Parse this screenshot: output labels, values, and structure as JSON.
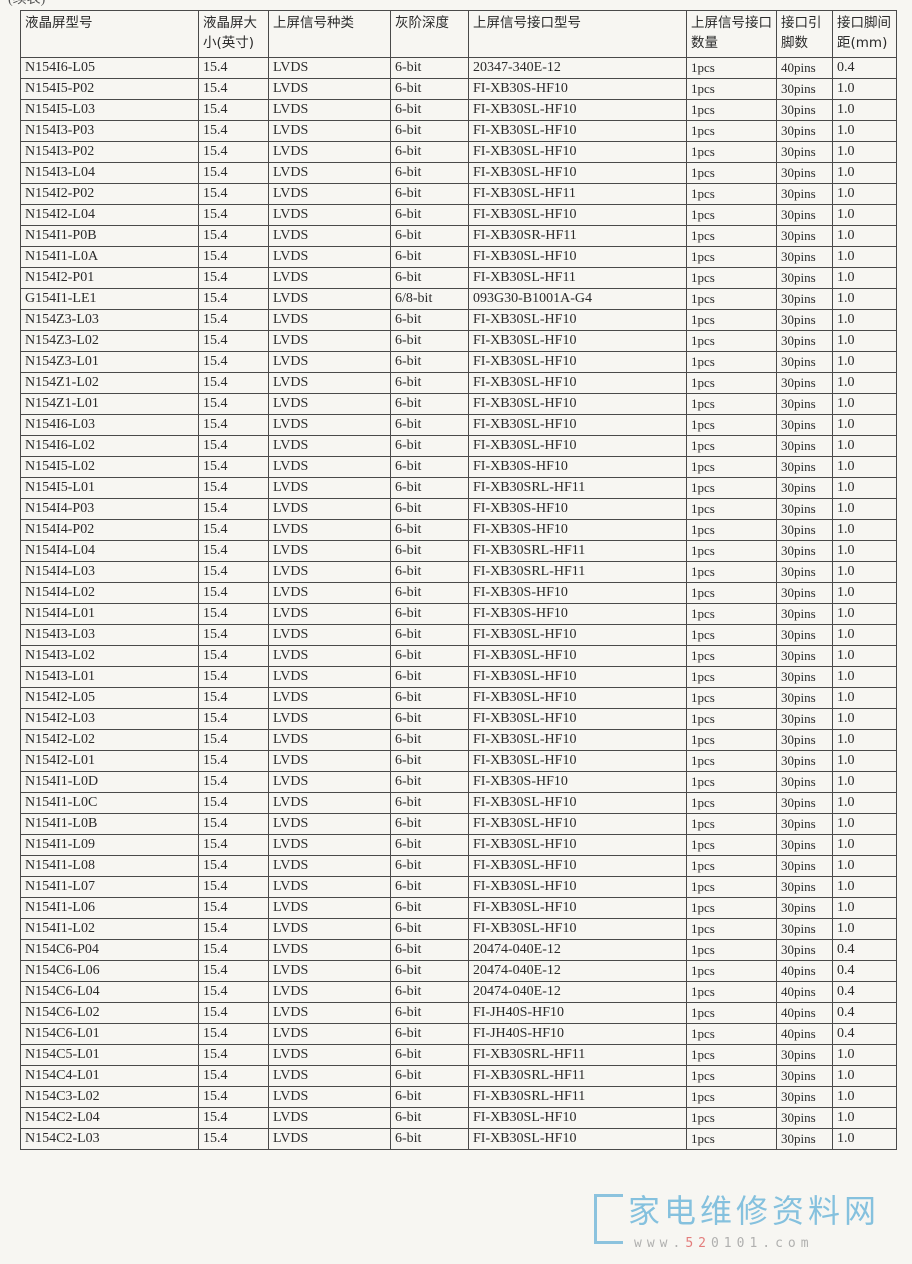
{
  "continued_label": "(续表)",
  "headers": [
    "液晶屏型号",
    "液晶屏大小(英寸)",
    "上屏信号种类",
    "灰阶深度",
    "上屏信号接口型号",
    "上屏信号接口数量",
    "接口引脚数",
    "接口脚间距(mm)"
  ],
  "rows": [
    [
      "N154I6-L05",
      "15.4",
      "LVDS",
      "6-bit",
      "20347-340E-12",
      "1pcs",
      "40pins",
      "0.4"
    ],
    [
      "N154I5-P02",
      "15.4",
      "LVDS",
      "6-bit",
      "FI-XB30S-HF10",
      "1pcs",
      "30pins",
      "1.0"
    ],
    [
      "N154I5-L03",
      "15.4",
      "LVDS",
      "6-bit",
      "FI-XB30SL-HF10",
      "1pcs",
      "30pins",
      "1.0"
    ],
    [
      "N154I3-P03",
      "15.4",
      "LVDS",
      "6-bit",
      "FI-XB30SL-HF10",
      "1pcs",
      "30pins",
      "1.0"
    ],
    [
      "N154I3-P02",
      "15.4",
      "LVDS",
      "6-bit",
      "FI-XB30SL-HF10",
      "1pcs",
      "30pins",
      "1.0"
    ],
    [
      "N154I3-L04",
      "15.4",
      "LVDS",
      "6-bit",
      "FI-XB30SL-HF10",
      "1pcs",
      "30pins",
      "1.0"
    ],
    [
      "N154I2-P02",
      "15.4",
      "LVDS",
      "6-bit",
      "FI-XB30SL-HF11",
      "1pcs",
      "30pins",
      "1.0"
    ],
    [
      "N154I2-L04",
      "15.4",
      "LVDS",
      "6-bit",
      "FI-XB30SL-HF10",
      "1pcs",
      "30pins",
      "1.0"
    ],
    [
      "N154I1-P0B",
      "15.4",
      "LVDS",
      "6-bit",
      "FI-XB30SR-HF11",
      "1pcs",
      "30pins",
      "1.0"
    ],
    [
      "N154I1-L0A",
      "15.4",
      "LVDS",
      "6-bit",
      "FI-XB30SL-HF10",
      "1pcs",
      "30pins",
      "1.0"
    ],
    [
      "N154I2-P01",
      "15.4",
      "LVDS",
      "6-bit",
      "FI-XB30SL-HF11",
      "1pcs",
      "30pins",
      "1.0"
    ],
    [
      "G154I1-LE1",
      "15.4",
      "LVDS",
      "6/8-bit",
      "093G30-B1001A-G4",
      "1pcs",
      "30pins",
      "1.0"
    ],
    [
      "N154Z3-L03",
      "15.4",
      "LVDS",
      "6-bit",
      "FI-XB30SL-HF10",
      "1pcs",
      "30pins",
      "1.0"
    ],
    [
      "N154Z3-L02",
      "15.4",
      "LVDS",
      "6-bit",
      "FI-XB30SL-HF10",
      "1pcs",
      "30pins",
      "1.0"
    ],
    [
      "N154Z3-L01",
      "15.4",
      "LVDS",
      "6-bit",
      "FI-XB30SL-HF10",
      "1pcs",
      "30pins",
      "1.0"
    ],
    [
      "N154Z1-L02",
      "15.4",
      "LVDS",
      "6-bit",
      "FI-XB30SL-HF10",
      "1pcs",
      "30pins",
      "1.0"
    ],
    [
      "N154Z1-L01",
      "15.4",
      "LVDS",
      "6-bit",
      "FI-XB30SL-HF10",
      "1pcs",
      "30pins",
      "1.0"
    ],
    [
      "N154I6-L03",
      "15.4",
      "LVDS",
      "6-bit",
      "FI-XB30SL-HF10",
      "1pcs",
      "30pins",
      "1.0"
    ],
    [
      "N154I6-L02",
      "15.4",
      "LVDS",
      "6-bit",
      "FI-XB30SL-HF10",
      "1pcs",
      "30pins",
      "1.0"
    ],
    [
      "N154I5-L02",
      "15.4",
      "LVDS",
      "6-bit",
      "FI-XB30S-HF10",
      "1pcs",
      "30pins",
      "1.0"
    ],
    [
      "N154I5-L01",
      "15.4",
      "LVDS",
      "6-bit",
      "FI-XB30SRL-HF11",
      "1pcs",
      "30pins",
      "1.0"
    ],
    [
      "N154I4-P03",
      "15.4",
      "LVDS",
      "6-bit",
      "FI-XB30S-HF10",
      "1pcs",
      "30pins",
      "1.0"
    ],
    [
      "N154I4-P02",
      "15.4",
      "LVDS",
      "6-bit",
      "FI-XB30S-HF10",
      "1pcs",
      "30pins",
      "1.0"
    ],
    [
      "N154I4-L04",
      "15.4",
      "LVDS",
      "6-bit",
      "FI-XB30SRL-HF11",
      "1pcs",
      "30pins",
      "1.0"
    ],
    [
      "N154I4-L03",
      "15.4",
      "LVDS",
      "6-bit",
      "FI-XB30SRL-HF11",
      "1pcs",
      "30pins",
      "1.0"
    ],
    [
      "N154I4-L02",
      "15.4",
      "LVDS",
      "6-bit",
      "FI-XB30S-HF10",
      "1pcs",
      "30pins",
      "1.0"
    ],
    [
      "N154I4-L01",
      "15.4",
      "LVDS",
      "6-bit",
      "FI-XB30S-HF10",
      "1pcs",
      "30pins",
      "1.0"
    ],
    [
      "N154I3-L03",
      "15.4",
      "LVDS",
      "6-bit",
      "FI-XB30SL-HF10",
      "1pcs",
      "30pins",
      "1.0"
    ],
    [
      "N154I3-L02",
      "15.4",
      "LVDS",
      "6-bit",
      "FI-XB30SL-HF10",
      "1pcs",
      "30pins",
      "1.0"
    ],
    [
      "N154I3-L01",
      "15.4",
      "LVDS",
      "6-bit",
      "FI-XB30SL-HF10",
      "1pcs",
      "30pins",
      "1.0"
    ],
    [
      "N154I2-L05",
      "15.4",
      "LVDS",
      "6-bit",
      "FI-XB30SL-HF10",
      "1pcs",
      "30pins",
      "1.0"
    ],
    [
      "N154I2-L03",
      "15.4",
      "LVDS",
      "6-bit",
      "FI-XB30SL-HF10",
      "1pcs",
      "30pins",
      "1.0"
    ],
    [
      "N154I2-L02",
      "15.4",
      "LVDS",
      "6-bit",
      "FI-XB30SL-HF10",
      "1pcs",
      "30pins",
      "1.0"
    ],
    [
      "N154I2-L01",
      "15.4",
      "LVDS",
      "6-bit",
      "FI-XB30SL-HF10",
      "1pcs",
      "30pins",
      "1.0"
    ],
    [
      "N154I1-L0D",
      "15.4",
      "LVDS",
      "6-bit",
      "FI-XB30S-HF10",
      "1pcs",
      "30pins",
      "1.0"
    ],
    [
      "N154I1-L0C",
      "15.4",
      "LVDS",
      "6-bit",
      "FI-XB30SL-HF10",
      "1pcs",
      "30pins",
      "1.0"
    ],
    [
      "N154I1-L0B",
      "15.4",
      "LVDS",
      "6-bit",
      "FI-XB30SL-HF10",
      "1pcs",
      "30pins",
      "1.0"
    ],
    [
      "N154I1-L09",
      "15.4",
      "LVDS",
      "6-bit",
      "FI-XB30SL-HF10",
      "1pcs",
      "30pins",
      "1.0"
    ],
    [
      "N154I1-L08",
      "15.4",
      "LVDS",
      "6-bit",
      "FI-XB30SL-HF10",
      "1pcs",
      "30pins",
      "1.0"
    ],
    [
      "N154I1-L07",
      "15.4",
      "LVDS",
      "6-bit",
      "FI-XB30SL-HF10",
      "1pcs",
      "30pins",
      "1.0"
    ],
    [
      "N154I1-L06",
      "15.4",
      "LVDS",
      "6-bit",
      "FI-XB30SL-HF10",
      "1pcs",
      "30pins",
      "1.0"
    ],
    [
      "N154I1-L02",
      "15.4",
      "LVDS",
      "6-bit",
      "FI-XB30SL-HF10",
      "1pcs",
      "30pins",
      "1.0"
    ],
    [
      "N154C6-P04",
      "15.4",
      "LVDS",
      "6-bit",
      "20474-040E-12",
      "1pcs",
      "30pins",
      "0.4"
    ],
    [
      "N154C6-L06",
      "15.4",
      "LVDS",
      "6-bit",
      "20474-040E-12",
      "1pcs",
      "40pins",
      "0.4"
    ],
    [
      "N154C6-L04",
      "15.4",
      "LVDS",
      "6-bit",
      "20474-040E-12",
      "1pcs",
      "40pins",
      "0.4"
    ],
    [
      "N154C6-L02",
      "15.4",
      "LVDS",
      "6-bit",
      "FI-JH40S-HF10",
      "1pcs",
      "40pins",
      "0.4"
    ],
    [
      "N154C6-L01",
      "15.4",
      "LVDS",
      "6-bit",
      "FI-JH40S-HF10",
      "1pcs",
      "40pins",
      "0.4"
    ],
    [
      "N154C5-L01",
      "15.4",
      "LVDS",
      "6-bit",
      "FI-XB30SRL-HF11",
      "1pcs",
      "30pins",
      "1.0"
    ],
    [
      "N154C4-L01",
      "15.4",
      "LVDS",
      "6-bit",
      "FI-XB30SRL-HF11",
      "1pcs",
      "30pins",
      "1.0"
    ],
    [
      "N154C3-L02",
      "15.4",
      "LVDS",
      "6-bit",
      "FI-XB30SRL-HF11",
      "1pcs",
      "30pins",
      "1.0"
    ],
    [
      "N154C2-L04",
      "15.4",
      "LVDS",
      "6-bit",
      "FI-XB30SL-HF10",
      "1pcs",
      "30pins",
      "1.0"
    ],
    [
      "N154C2-L03",
      "15.4",
      "LVDS",
      "6-bit",
      "FI-XB30SL-HF10",
      "1pcs",
      "30pins",
      "1.0"
    ]
  ],
  "watermark_logo": {
    "text": "家电维修资料网",
    "url_prefix": "www.",
    "url_highlight": "52",
    "url_rest": "0101.com",
    "color": "#5fb0d8"
  }
}
